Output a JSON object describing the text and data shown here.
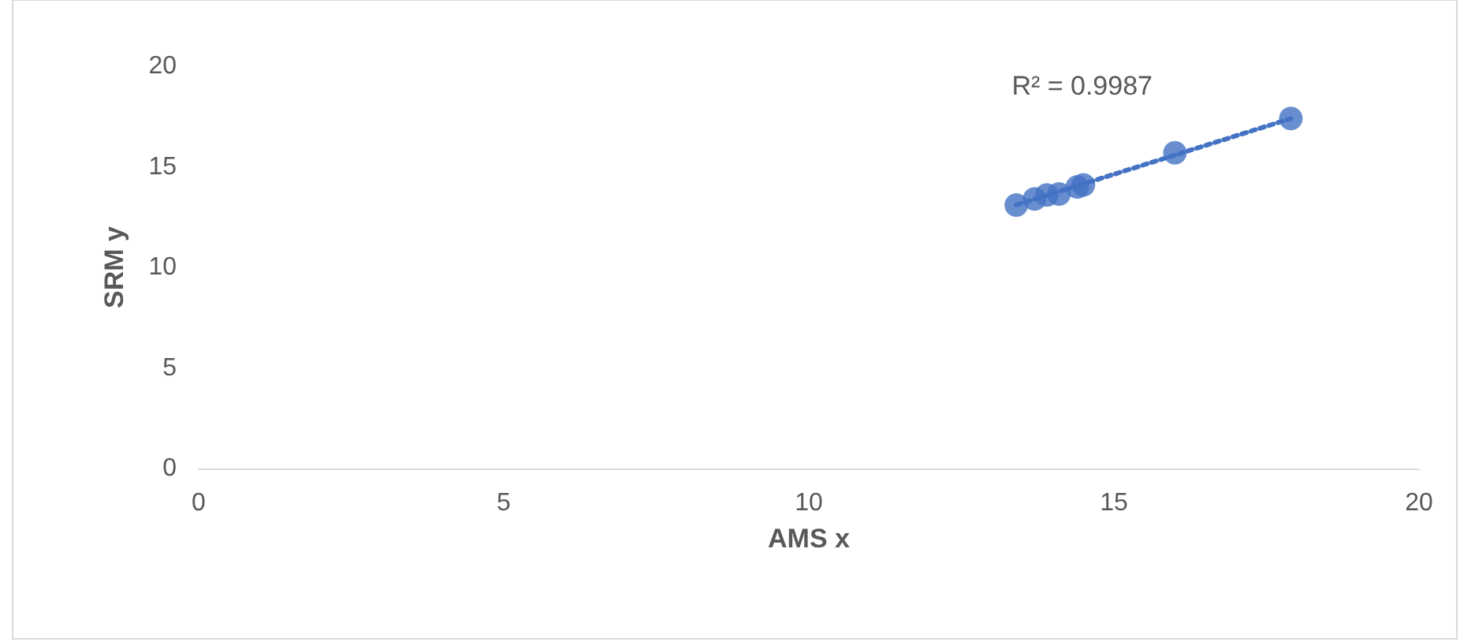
{
  "chart_data": {
    "type": "scatter",
    "xlabel": "AMS x",
    "ylabel": "SRM y",
    "annotations": [
      "R² = 0.9987"
    ],
    "xlim": [
      0,
      20
    ],
    "xticks": [
      0,
      5,
      10,
      15,
      20
    ],
    "ylim": [
      0,
      20
    ],
    "yticks": [
      0,
      5,
      10,
      15,
      20
    ],
    "grid": false,
    "marker": "circle",
    "series": [
      {
        "color": "#4472c4",
        "x": [
          13.4,
          13.7,
          13.9,
          14.1,
          14.4,
          14.5,
          16.0,
          17.9
        ],
        "values": [
          13.1,
          13.4,
          13.6,
          13.65,
          14.0,
          14.1,
          15.7,
          17.4
        ]
      },
      {
        "type": "line",
        "color": "#4472c4",
        "line_style": "dotted",
        "marker": "none",
        "x": [
          13.4,
          17.9
        ],
        "values": [
          13.1,
          17.4
        ]
      }
    ]
  }
}
